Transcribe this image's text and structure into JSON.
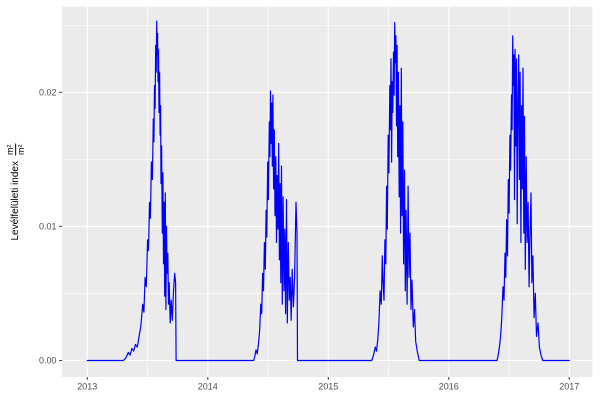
{
  "figure": {
    "background": "#FFFFFF",
    "panel_background": "#EBEBEB",
    "grid_color": "#FFFFFF",
    "tick_mark_color": "#333333",
    "tick_label_color": "#4D4D4D",
    "axis_title_color": "#000000"
  },
  "y_axis": {
    "title_text": "Levélfelületi index",
    "unit_numerator": "m²",
    "unit_denominator": "m²",
    "ticks": [
      {
        "label": "0.00",
        "value": 0.0
      },
      {
        "label": "0.01",
        "value": 0.01
      },
      {
        "label": "0.02",
        "value": 0.02
      }
    ]
  },
  "x_axis": {
    "ticks": [
      {
        "label": "2013",
        "value": 2013
      },
      {
        "label": "2014",
        "value": 2014
      },
      {
        "label": "2015",
        "value": 2015
      },
      {
        "label": "2016",
        "value": 2016
      },
      {
        "label": "2017",
        "value": 2017
      }
    ]
  },
  "chart_data": {
    "type": "line",
    "title": "",
    "xlabel": "",
    "ylabel": "Levélfelületi index m²/m²",
    "x_range": [
      2012.79,
      2017.19
    ],
    "y_range": [
      -0.0013,
      0.0264
    ],
    "grid": true,
    "legend": "none",
    "x_major_gridlines": [
      2013,
      2014,
      2015,
      2016,
      2017
    ],
    "x_minor_gridlines": [
      2013.5,
      2014.5,
      2015.5,
      2016.5
    ],
    "y_major_gridlines": [
      0.0,
      0.01,
      0.02
    ],
    "y_minor_gridlines": [
      0.005,
      0.015,
      0.025
    ],
    "series": [
      {
        "name": "Levélfelületi index",
        "color": "#0000FF",
        "points": [
          [
            2013.0,
            0
          ],
          [
            2013.3,
            0
          ],
          [
            2013.32,
            0.0002
          ],
          [
            2013.34,
            0.0006
          ],
          [
            2013.355,
            0.0004
          ],
          [
            2013.37,
            0.0009
          ],
          [
            2013.385,
            0.0007
          ],
          [
            2013.4,
            0.0012
          ],
          [
            2013.415,
            0.001
          ],
          [
            2013.43,
            0.0018
          ],
          [
            2013.445,
            0.0026
          ],
          [
            2013.46,
            0.0042
          ],
          [
            2013.47,
            0.0036
          ],
          [
            2013.48,
            0.0062
          ],
          [
            2013.49,
            0.0055
          ],
          [
            2013.5,
            0.009
          ],
          [
            2013.508,
            0.0082
          ],
          [
            2013.516,
            0.0118
          ],
          [
            2013.524,
            0.0106
          ],
          [
            2013.532,
            0.0148
          ],
          [
            2013.54,
            0.0135
          ],
          [
            2013.548,
            0.018
          ],
          [
            2013.553,
            0.0163
          ],
          [
            2013.558,
            0.0205
          ],
          [
            2013.563,
            0.0188
          ],
          [
            2013.568,
            0.0235
          ],
          [
            2013.572,
            0.0215
          ],
          [
            2013.576,
            0.0253
          ],
          [
            2013.579,
            0.0228
          ],
          [
            2013.583,
            0.0244
          ],
          [
            2013.587,
            0.0208
          ],
          [
            2013.591,
            0.0232
          ],
          [
            2013.595,
            0.0185
          ],
          [
            2013.6,
            0.0215
          ],
          [
            2013.604,
            0.0168
          ],
          [
            2013.608,
            0.019
          ],
          [
            2013.612,
            0.0132
          ],
          [
            2013.617,
            0.016
          ],
          [
            2013.622,
            0.0095
          ],
          [
            2013.627,
            0.014
          ],
          [
            2013.632,
            0.0072
          ],
          [
            2013.637,
            0.0118
          ],
          [
            2013.642,
            0.0048
          ],
          [
            2013.647,
            0.0125
          ],
          [
            2013.652,
            0.0038
          ],
          [
            2013.657,
            0.01
          ],
          [
            2013.662,
            0.0065
          ],
          [
            2013.668,
            0.008
          ],
          [
            2013.674,
            0.0042
          ],
          [
            2013.68,
            0.0058
          ],
          [
            2013.688,
            0.0028
          ],
          [
            2013.696,
            0.0045
          ],
          [
            2013.705,
            0.003
          ],
          [
            2013.715,
            0.0052
          ],
          [
            2013.725,
            0.0065
          ],
          [
            2013.733,
            0.0058
          ],
          [
            2013.737,
            0.0
          ],
          [
            2014.38,
            0
          ],
          [
            2014.39,
            0.0003
          ],
          [
            2014.4,
            0.0008
          ],
          [
            2014.41,
            0.0005
          ],
          [
            2014.42,
            0.0012
          ],
          [
            2014.43,
            0.0022
          ],
          [
            2014.44,
            0.0042
          ],
          [
            2014.447,
            0.0035
          ],
          [
            2014.455,
            0.0065
          ],
          [
            2014.462,
            0.0052
          ],
          [
            2014.47,
            0.0088
          ],
          [
            2014.477,
            0.0068
          ],
          [
            2014.484,
            0.0112
          ],
          [
            2014.49,
            0.0092
          ],
          [
            2014.497,
            0.0148
          ],
          [
            2014.503,
            0.012
          ],
          [
            2014.51,
            0.0178
          ],
          [
            2014.515,
            0.0152
          ],
          [
            2014.52,
            0.0201
          ],
          [
            2014.525,
            0.0162
          ],
          [
            2014.53,
            0.0192
          ],
          [
            2014.535,
            0.0145
          ],
          [
            2014.54,
            0.0198
          ],
          [
            2014.546,
            0.0128
          ],
          [
            2014.552,
            0.0172
          ],
          [
            2014.558,
            0.0108
          ],
          [
            2014.564,
            0.0152
          ],
          [
            2014.57,
            0.0088
          ],
          [
            2014.576,
            0.0138
          ],
          [
            2014.582,
            0.0098
          ],
          [
            2014.588,
            0.0162
          ],
          [
            2014.594,
            0.0075
          ],
          [
            2014.6,
            0.0132
          ],
          [
            2014.606,
            0.0058
          ],
          [
            2014.612,
            0.0145
          ],
          [
            2014.618,
            0.0042
          ],
          [
            2014.625,
            0.0122
          ],
          [
            2014.632,
            0.0052
          ],
          [
            2014.639,
            0.0098
          ],
          [
            2014.646,
            0.0035
          ],
          [
            2014.653,
            0.012
          ],
          [
            2014.66,
            0.0028
          ],
          [
            2014.668,
            0.0088
          ],
          [
            2014.676,
            0.0045
          ],
          [
            2014.684,
            0.0062
          ],
          [
            2014.692,
            0.003
          ],
          [
            2014.7,
            0.0068
          ],
          [
            2014.71,
            0.004
          ],
          [
            2014.72,
            0.0062
          ],
          [
            2014.732,
            0.0118
          ],
          [
            2014.74,
            0.0095
          ],
          [
            2014.744,
            0.0
          ],
          [
            2015.36,
            0
          ],
          [
            2015.375,
            0.0004
          ],
          [
            2015.39,
            0.001
          ],
          [
            2015.4,
            0.0007
          ],
          [
            2015.41,
            0.0015
          ],
          [
            2015.42,
            0.0028
          ],
          [
            2015.43,
            0.0052
          ],
          [
            2015.44,
            0.0042
          ],
          [
            2015.448,
            0.0078
          ],
          [
            2015.455,
            0.0058
          ],
          [
            2015.462,
            0.0045
          ],
          [
            2015.47,
            0.009
          ],
          [
            2015.477,
            0.0072
          ],
          [
            2015.484,
            0.013
          ],
          [
            2015.49,
            0.0098
          ],
          [
            2015.497,
            0.0168
          ],
          [
            2015.503,
            0.014
          ],
          [
            2015.51,
            0.0205
          ],
          [
            2015.515,
            0.0172
          ],
          [
            2015.52,
            0.0225
          ],
          [
            2015.525,
            0.0148
          ],
          [
            2015.53,
            0.0208
          ],
          [
            2015.535,
            0.0185
          ],
          [
            2015.541,
            0.023
          ],
          [
            2015.546,
            0.0198
          ],
          [
            2015.551,
            0.0252
          ],
          [
            2015.556,
            0.0222
          ],
          [
            2015.561,
            0.0242
          ],
          [
            2015.566,
            0.0175
          ],
          [
            2015.571,
            0.0235
          ],
          [
            2015.576,
            0.0152
          ],
          [
            2015.582,
            0.0215
          ],
          [
            2015.588,
            0.0122
          ],
          [
            2015.594,
            0.019
          ],
          [
            2015.6,
            0.0095
          ],
          [
            2015.606,
            0.0218
          ],
          [
            2015.612,
            0.0108
          ],
          [
            2015.618,
            0.0178
          ],
          [
            2015.625,
            0.0072
          ],
          [
            2015.632,
            0.0142
          ],
          [
            2015.639,
            0.0052
          ],
          [
            2015.646,
            0.0112
          ],
          [
            2015.654,
            0.0042
          ],
          [
            2015.662,
            0.013
          ],
          [
            2015.67,
            0.0062
          ],
          [
            2015.678,
            0.0095
          ],
          [
            2015.686,
            0.0038
          ],
          [
            2015.695,
            0.006
          ],
          [
            2015.705,
            0.0025
          ],
          [
            2015.715,
            0.0038
          ],
          [
            2015.725,
            0.0014
          ],
          [
            2015.74,
            0.0006
          ],
          [
            2015.755,
            0
          ],
          [
            2016.4,
            0
          ],
          [
            2016.41,
            0.0004
          ],
          [
            2016.42,
            0.001
          ],
          [
            2016.43,
            0.0018
          ],
          [
            2016.44,
            0.0032
          ],
          [
            2016.45,
            0.0055
          ],
          [
            2016.458,
            0.0045
          ],
          [
            2016.466,
            0.008
          ],
          [
            2016.473,
            0.0062
          ],
          [
            2016.48,
            0.0105
          ],
          [
            2016.487,
            0.0078
          ],
          [
            2016.494,
            0.0135
          ],
          [
            2016.5,
            0.011
          ],
          [
            2016.507,
            0.0168
          ],
          [
            2016.513,
            0.0142
          ],
          [
            2016.52,
            0.0198
          ],
          [
            2016.525,
            0.0172
          ],
          [
            2016.53,
            0.0242
          ],
          [
            2016.535,
            0.0205
          ],
          [
            2016.54,
            0.0228
          ],
          [
            2016.545,
            0.012
          ],
          [
            2016.55,
            0.0232
          ],
          [
            2016.556,
            0.016
          ],
          [
            2016.562,
            0.0225
          ],
          [
            2016.568,
            0.0102
          ],
          [
            2016.574,
            0.0195
          ],
          [
            2016.58,
            0.0228
          ],
          [
            2016.586,
            0.0135
          ],
          [
            2016.592,
            0.0215
          ],
          [
            2016.598,
            0.0088
          ],
          [
            2016.604,
            0.019
          ],
          [
            2016.61,
            0.0128
          ],
          [
            2016.616,
            0.0218
          ],
          [
            2016.622,
            0.0095
          ],
          [
            2016.628,
            0.0182
          ],
          [
            2016.635,
            0.0068
          ],
          [
            2016.642,
            0.0152
          ],
          [
            2016.65,
            0.0088
          ],
          [
            2016.658,
            0.0118
          ],
          [
            2016.666,
            0.0055
          ],
          [
            2016.674,
            0.0095
          ],
          [
            2016.682,
            0.0125
          ],
          [
            2016.69,
            0.0058
          ],
          [
            2016.698,
            0.0078
          ],
          [
            2016.708,
            0.0032
          ],
          [
            2016.718,
            0.005
          ],
          [
            2016.728,
            0.0018
          ],
          [
            2016.74,
            0.0028
          ],
          [
            2016.752,
            0.001
          ],
          [
            2016.765,
            0.0004
          ],
          [
            2016.78,
            0
          ],
          [
            2017.0,
            0
          ]
        ]
      }
    ]
  }
}
